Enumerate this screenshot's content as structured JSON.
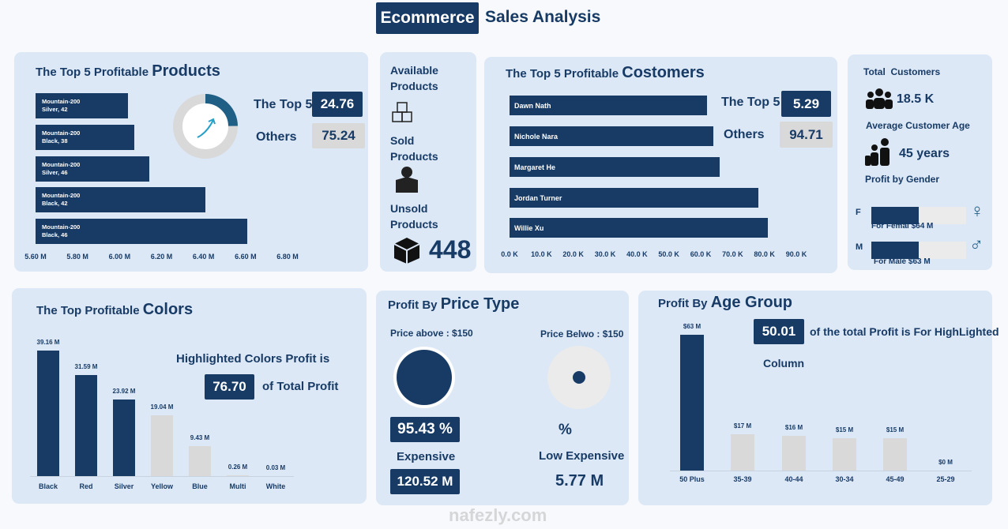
{
  "header": {
    "title_highlight": "Ecommerce",
    "title_rest": "Sales Analysis"
  },
  "products": {
    "title_prefix": "The Top 5 Profitable",
    "title_main": "Products",
    "type": "bar",
    "categories": [
      "Mountain-200 Silver, 42",
      "Mountain-200 Black, 38",
      "Mountain-200 Silver, 46",
      "Mountain-200 Black, 42",
      "Mountain-200 Black, 46"
    ],
    "values": [
      6.04,
      6.07,
      6.14,
      6.41,
      6.61
    ],
    "color": "#183b66",
    "xlim": [
      5.6,
      6.8
    ],
    "xticks": [
      {
        "value": 5.6,
        "label": "5.60 M"
      },
      {
        "value": 5.8,
        "label": "5.80 M"
      },
      {
        "value": 6.0,
        "label": "6.00 M"
      },
      {
        "value": 6.2,
        "label": "6.20 M"
      },
      {
        "value": 6.4,
        "label": "6.40 M"
      },
      {
        "value": 6.6,
        "label": "6.60 M"
      },
      {
        "value": 6.8,
        "label": "6.80 M"
      }
    ],
    "top5_label": "The Top 5",
    "top5_value": 24.76,
    "others_label": "Others",
    "others_value": 75.24
  },
  "available": {
    "available_label": "Available Products",
    "sold_label": "Sold Products",
    "unsold_label": "Unsold Products",
    "unsold_value": 448
  },
  "customers": {
    "title_prefix": "The Top 5 Profitable",
    "title_main": "Costomers",
    "type": "bar",
    "categories": [
      "Dawn Nath",
      "Nichole Nara",
      "Margaret He",
      "Jordan Turner",
      "Willie Xu"
    ],
    "values": [
      62,
      64,
      66,
      78,
      81
    ],
    "color": "#183b66",
    "xlim": [
      0,
      90
    ],
    "xticks": [
      {
        "value": 0,
        "label": "0.0 K"
      },
      {
        "value": 10,
        "label": "10.0 K"
      },
      {
        "value": 20,
        "label": "20.0 K"
      },
      {
        "value": 30,
        "label": "30.0 K"
      },
      {
        "value": 40,
        "label": "40.0 K"
      },
      {
        "value": 50,
        "label": "50.0 K"
      },
      {
        "value": 60,
        "label": "60.0 K"
      },
      {
        "value": 70,
        "label": "70.0 K"
      },
      {
        "value": 80,
        "label": "80.0 K"
      },
      {
        "value": 90,
        "label": "90.0 K"
      }
    ],
    "top5_label": "The Top 5",
    "top5_value": 5.29,
    "others_label": "Others",
    "others_value": 94.71
  },
  "summary": {
    "total_label": "Total  Customers",
    "total_value": "18.5 K",
    "age_label": "Average Customer Age",
    "age_value": "45 years",
    "gender_label": "Profit by Gender",
    "gender": {
      "type": "bar",
      "categories": [
        "F",
        "M"
      ],
      "values": [
        64,
        63
      ],
      "value_labels": [
        "For Femal $64 M",
        "For Male $63 M"
      ],
      "color": "#183b66"
    }
  },
  "colors": {
    "title_prefix": "The Top Profitable",
    "title_main": "Colors",
    "type": "bar",
    "categories": [
      "Black",
      "Red",
      "Silver",
      "Yellow",
      "Blue",
      "Multi",
      "White"
    ],
    "values": [
      39.16,
      31.59,
      23.92,
      19.04,
      9.43,
      0.26,
      0.03
    ],
    "value_labels": [
      "39.16 M",
      "31.59 M",
      "23.92 M",
      "19.04 M",
      "9.43 M",
      "0.26 M",
      "0.03 M"
    ],
    "bar_colors": [
      "#183b66",
      "#183b66",
      "#183b66",
      "#d9d9d9",
      "#d9d9d9",
      "#d9d9d9",
      "#d9d9d9"
    ],
    "ylim": [
      0,
      40
    ],
    "note_text": "Highlighted Colors Profit is",
    "note_value": {
      "value": 76.7,
      "label": "76.70"
    },
    "note_suffix": "of Total Profit"
  },
  "price": {
    "title_prefix": "Profit By",
    "title_main": "Price Type",
    "above_label": "Price above : $150",
    "below_label": "Price Belwo : $150",
    "expensive_percent": {
      "value": 95.43,
      "label": "95.43 %"
    },
    "low_percent_label": "%",
    "expensive_label": "Expensive",
    "expensive_value": "120.52 M",
    "low_label": "Low Expensive",
    "low_value": "5.77 M"
  },
  "age": {
    "title_prefix": "Profit By",
    "title_main": "Age Group",
    "type": "bar",
    "note_value": 50.01,
    "note_text": "of the total Profit is For HighLighted",
    "note_text2": "Column",
    "categories": [
      "50 Plus",
      "35-39",
      "40-44",
      "30-34",
      "45-49",
      "25-29"
    ],
    "values": [
      63,
      17,
      16,
      15,
      15,
      0
    ],
    "value_labels": [
      "$63 M",
      "$17 M",
      "$16 M",
      "$15 M",
      "$15 M",
      "$0 M"
    ],
    "bar_colors": [
      "#183b66",
      "#d9d9d9",
      "#d9d9d9",
      "#d9d9d9",
      "#d9d9d9",
      "#d9d9d9"
    ],
    "ylim": [
      0,
      65
    ]
  },
  "watermark": "nafezly.com"
}
